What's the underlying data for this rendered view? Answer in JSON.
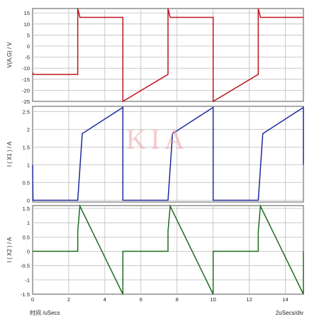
{
  "watermark": "KIA",
  "footer": {
    "x_axis_label": "时间 /uSecs",
    "time_scale": "2uSecs/div"
  },
  "colors": {
    "panel_border": "#555555",
    "grid": "#bdbdbd"
  },
  "chart_data": [
    {
      "type": "line",
      "ylabel": "V(A,G) / V",
      "xlim": [
        0,
        15
      ],
      "ylim": [
        -25,
        17
      ],
      "yticks": [
        15,
        10,
        5,
        0,
        -5,
        -10,
        -15,
        -20,
        -25
      ],
      "xticks": [],
      "color": "#c0141e",
      "series": [
        {
          "x": [
            0,
            0.05,
            2.5,
            2.5,
            2.62,
            5.0,
            5.0,
            7.5,
            7.5,
            7.62,
            10.0,
            10.0,
            12.5,
            12.5,
            12.62,
            15.0
          ],
          "y": [
            -12,
            -12.8,
            -12.8,
            17,
            13,
            13,
            -25,
            -12.8,
            17,
            13,
            13,
            -25,
            -12.8,
            17,
            13,
            13
          ]
        }
      ]
    },
    {
      "type": "line",
      "ylabel": "I ( X1 ) / A",
      "xlim": [
        0,
        15
      ],
      "ylim": [
        -0.05,
        2.65
      ],
      "yticks": [
        2.5,
        2,
        1.5,
        1,
        0.5,
        0
      ],
      "xticks": [],
      "color": "#1a2a9c",
      "series": [
        {
          "x": [
            0,
            0.02,
            2.5,
            2.75,
            5.0,
            5.0,
            7.5,
            7.75,
            10.0,
            10.0,
            12.5,
            12.75,
            15.0,
            15.0
          ],
          "y": [
            1.0,
            0,
            0,
            1.88,
            2.62,
            0,
            0,
            1.88,
            2.62,
            0,
            0,
            1.88,
            2.62,
            1.0
          ]
        }
      ]
    },
    {
      "type": "line",
      "ylabel": "I ( X2 ) / A",
      "xlim": [
        0,
        15
      ],
      "ylim": [
        -1.5,
        1.6
      ],
      "yticks": [
        1.5,
        1,
        0.5,
        0,
        -0.5,
        -1,
        -1.5
      ],
      "xticks": [
        0,
        2,
        4,
        6,
        8,
        10,
        12,
        14
      ],
      "color": "#1e6b1e",
      "series": [
        {
          "x": [
            0,
            2.5,
            2.5,
            2.62,
            5.0,
            5.0,
            7.5,
            7.5,
            7.62,
            10.0,
            10.0,
            12.5,
            12.5,
            12.62,
            15.0,
            15.0
          ],
          "y": [
            0,
            0,
            0.7,
            1.58,
            -1.5,
            0,
            0,
            0.7,
            1.58,
            -1.5,
            0,
            0,
            0.7,
            1.58,
            -1.5,
            0
          ]
        }
      ]
    }
  ]
}
